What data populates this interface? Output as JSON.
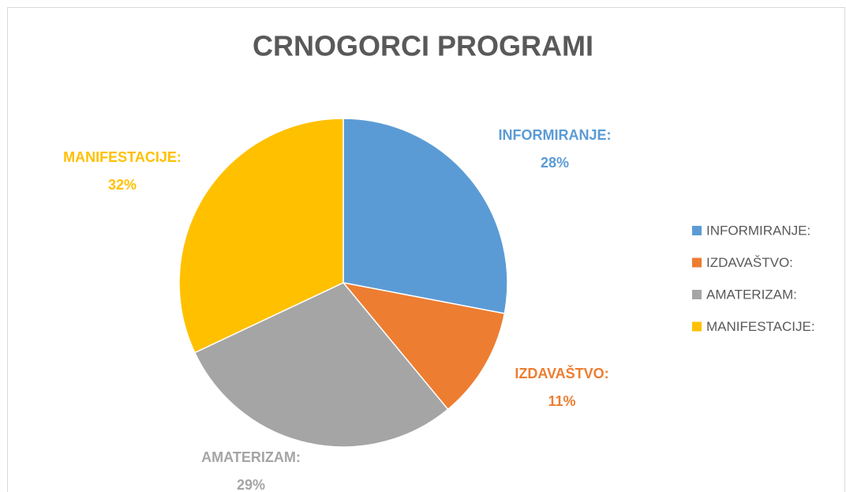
{
  "chart_data": {
    "type": "pie",
    "title": "CRNOGORCI PROGRAMI",
    "categories": [
      "INFORMIRANJE:",
      "IZDAVAŠTVO:",
      "AMATERIZAM:",
      "MANIFESTACIJE:"
    ],
    "values": [
      28,
      11,
      29,
      32
    ],
    "value_labels": [
      "28%",
      "11%",
      "29%",
      "32%"
    ],
    "colors": [
      "#5b9bd5",
      "#ed7d31",
      "#a5a5a5",
      "#ffc000"
    ],
    "legend": "right"
  }
}
